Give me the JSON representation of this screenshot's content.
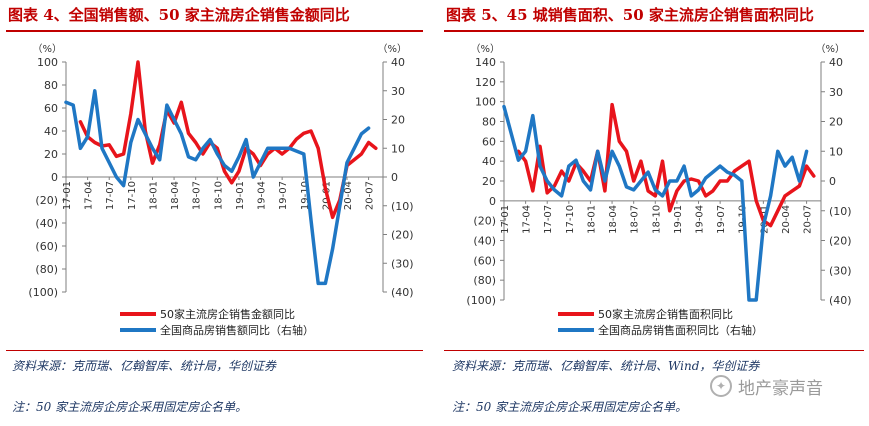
{
  "left_title": "图表 4、全国销售额、50 家主流房企销售金额同比",
  "right_title": "图表 5、45 城销售面积、50 家主流房企销售面积同比",
  "left_source": "资料来源：克而瑞、亿翰智库、统计局，华创证券",
  "right_source": "资料来源：克而瑞、亿翰智库、统计局、Wind，华创证券",
  "left_note": "注：50 家主流房企房企采用固定房企名单。",
  "right_note": "注：50 家主流房企房企采用固定房企名单。",
  "watermark": "地产豪声音",
  "chart_data": [
    {
      "type": "line",
      "title": "图表 4、全国销售额、50 家主流房企销售金额同比",
      "left_unit": "（%）",
      "right_unit": "（%）",
      "ylim": [
        -100,
        100
      ],
      "y2lim": [
        -40,
        40
      ],
      "yticks": [
        100,
        80,
        60,
        40,
        20,
        0,
        -20,
        -40,
        -60,
        -80,
        -100
      ],
      "ytick_labels": [
        "100",
        "80",
        "60",
        "40",
        "20",
        "0",
        "(20)",
        "(40)",
        "(60)",
        "(80)",
        "(100)"
      ],
      "y2ticks": [
        40,
        30,
        20,
        10,
        0,
        -10,
        -20,
        -30,
        -40
      ],
      "y2tick_labels": [
        "40",
        "30",
        "20",
        "10",
        "0",
        "(10)",
        "(20)",
        "(30)",
        "(40)"
      ],
      "x_range": [
        0,
        44
      ],
      "xticks": [
        0,
        3,
        6,
        9,
        12,
        15,
        18,
        21,
        24,
        27,
        30,
        33,
        36,
        39,
        42
      ],
      "xtick_labels": [
        "17-01",
        "17-04",
        "17-07",
        "17-10",
        "18-01",
        "18-04",
        "18-07",
        "18-10",
        "19-01",
        "19-04",
        "19-07",
        "19-10",
        "20-01",
        "20-04",
        "20-07"
      ],
      "series": [
        {
          "name": "50家主流房企销售金额同比",
          "color": "#e8141b",
          "axis": "left",
          "x": [
            2,
            3,
            4,
            5,
            6,
            7,
            8,
            9,
            10,
            11,
            12,
            13,
            14,
            15,
            16,
            17,
            18,
            19,
            20,
            21,
            22,
            23,
            24,
            25,
            26,
            27,
            28,
            29,
            30,
            31,
            32,
            33,
            34,
            35,
            36,
            37,
            38,
            39,
            40,
            41,
            42,
            43
          ],
          "values": [
            48,
            35,
            30,
            27,
            28,
            18,
            20,
            55,
            100,
            40,
            12,
            28,
            58,
            47,
            65,
            38,
            30,
            20,
            30,
            25,
            5,
            -5,
            5,
            25,
            20,
            10,
            20,
            25,
            20,
            25,
            33,
            38,
            40,
            25,
            -10,
            -35,
            -20,
            10,
            15,
            20,
            30,
            25
          ]
        },
        {
          "name": "全国商品房销售额同比（右轴）",
          "color": "#1f77c4",
          "axis": "right",
          "x": [
            0,
            1,
            2,
            3,
            4,
            5,
            6,
            7,
            8,
            9,
            10,
            11,
            12,
            13,
            14,
            15,
            16,
            17,
            18,
            19,
            20,
            21,
            22,
            23,
            24,
            25,
            26,
            27,
            28,
            29,
            30,
            31,
            32,
            33,
            34,
            35,
            36,
            37,
            38,
            39,
            40,
            41,
            42
          ],
          "values": [
            26,
            25,
            10,
            14,
            30,
            10,
            5,
            0,
            -3,
            12,
            20,
            15,
            10,
            6,
            25,
            20,
            15,
            7,
            6,
            10,
            13,
            8,
            4,
            2,
            7,
            13,
            0,
            5,
            10,
            10,
            10,
            10,
            9,
            8,
            -15,
            -37,
            -37,
            -25,
            -10,
            5,
            10,
            15,
            17
          ]
        }
      ],
      "legend": [
        "50家主流房企销售金额同比",
        "全国商品房销售额同比（右轴）"
      ],
      "legend_position": "bottom"
    },
    {
      "type": "line",
      "title": "图表 5、45 城销售面积、50 家主流房企销售面积同比",
      "left_unit": "（%）",
      "right_unit": "（%）",
      "ylim": [
        -100,
        140
      ],
      "y2lim": [
        -40,
        40
      ],
      "yticks": [
        140,
        120,
        100,
        80,
        60,
        40,
        20,
        0,
        -20,
        -40,
        -60,
        -80,
        -100
      ],
      "ytick_labels": [
        "140",
        "120",
        "100",
        "80",
        "60",
        "40",
        "20",
        "0",
        "(20)",
        "(40)",
        "(60)",
        "(80)",
        "(100)"
      ],
      "y2ticks": [
        40,
        30,
        20,
        10,
        0,
        -10,
        -20,
        -30,
        -40
      ],
      "y2tick_labels": [
        "40",
        "30",
        "20",
        "10",
        "0",
        "(10)",
        "(20)",
        "(30)",
        "(40)"
      ],
      "x_range": [
        0,
        44
      ],
      "xticks": [
        0,
        3,
        6,
        9,
        12,
        15,
        18,
        21,
        24,
        27,
        30,
        33,
        36,
        39,
        42
      ],
      "xtick_labels": [
        "17-01",
        "17-04",
        "17-07",
        "17-10",
        "18-01",
        "18-04",
        "18-07",
        "18-10",
        "19-01",
        "19-04",
        "19-07",
        "19-10",
        "20-01",
        "20-04",
        "20-07"
      ],
      "series": [
        {
          "name": "50家主流房企销售面积同比",
          "color": "#e8141b",
          "axis": "left",
          "x": [
            2,
            3,
            4,
            5,
            6,
            7,
            8,
            9,
            10,
            11,
            12,
            13,
            14,
            15,
            16,
            17,
            18,
            19,
            20,
            21,
            22,
            23,
            24,
            25,
            26,
            27,
            28,
            29,
            30,
            31,
            32,
            33,
            34,
            35,
            36,
            37,
            38,
            39,
            40,
            41,
            42,
            43
          ],
          "values": [
            50,
            40,
            10,
            55,
            8,
            15,
            30,
            20,
            38,
            30,
            20,
            50,
            10,
            97,
            60,
            50,
            20,
            40,
            10,
            5,
            40,
            -10,
            10,
            20,
            22,
            20,
            5,
            10,
            20,
            20,
            30,
            35,
            40,
            0,
            -20,
            -25,
            -10,
            5,
            10,
            15,
            35,
            25
          ]
        },
        {
          "name": "全国商品房销售面积同比（右轴）",
          "color": "#1f77c4",
          "axis": "right",
          "x": [
            0,
            1,
            2,
            3,
            4,
            5,
            6,
            7,
            8,
            9,
            10,
            11,
            12,
            13,
            14,
            15,
            16,
            17,
            18,
            19,
            20,
            21,
            22,
            23,
            24,
            25,
            26,
            27,
            28,
            29,
            30,
            31,
            32,
            33,
            34,
            35,
            36,
            37,
            38,
            39,
            40,
            41,
            42
          ],
          "values": [
            25,
            16,
            7,
            10,
            22,
            5,
            0,
            -3,
            -5,
            5,
            7,
            0,
            -3,
            10,
            0,
            10,
            5,
            -2,
            -3,
            0,
            3,
            -3,
            -5,
            0,
            0,
            5,
            -5,
            -3,
            1,
            3,
            5,
            3,
            2,
            0,
            -40,
            -40,
            -15,
            -5,
            10,
            5,
            8,
            0,
            10
          ]
        }
      ],
      "legend": [
        "50家主流房企销售面积同比",
        "全国商品房销售面积同比（右轴）"
      ],
      "legend_position": "bottom"
    }
  ]
}
